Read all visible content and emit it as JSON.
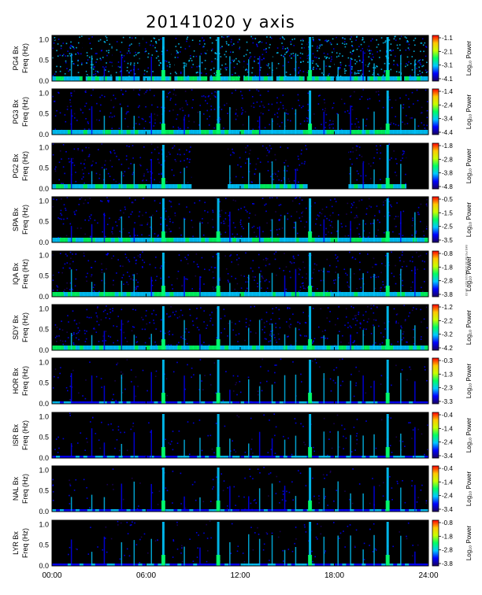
{
  "chart_data": {
    "type": "heatmap",
    "title": "20141020  y axis",
    "x_tick_labels": [
      "00:00",
      "06:00",
      "12:00",
      "18:00",
      "24:00"
    ],
    "x_ticks_hours": [
      0,
      6,
      12,
      18,
      24
    ],
    "xlim_hours": [
      0,
      24
    ],
    "y_tick_labels": [
      "0.0",
      "0.5",
      "1.0"
    ],
    "ylim": [
      0,
      1.1
    ],
    "ylabel": "Freq (Hz)",
    "colorbar_label": "Log₁₀ Power",
    "colormap": [
      "#1b0060",
      "#0000ff",
      "#00c8ff",
      "#00ff64",
      "#c8ff00",
      "#ffc800",
      "#ff0000"
    ],
    "panels": [
      {
        "name": "PG4 Bx",
        "colorbar_ticks": [
          "-1.1",
          "-2.1",
          "-3.1",
          "-4.1"
        ],
        "style": "noisy",
        "gaps_hours": [
          [
            1.95,
            2.15
          ],
          [
            3.85,
            4.05
          ],
          [
            5.6,
            5.8
          ],
          [
            7.6,
            7.8
          ],
          [
            9.9,
            10.05
          ],
          [
            12.0,
            12.2
          ],
          [
            14.1,
            14.3
          ],
          [
            16.1,
            16.25
          ],
          [
            18.0,
            18.1
          ],
          [
            20.0,
            20.1
          ],
          [
            22.3,
            22.45
          ]
        ]
      },
      {
        "name": "PG3 Bx",
        "colorbar_ticks": [
          "-1.4",
          "-2.4",
          "-3.4",
          "-4.4"
        ],
        "style": "mid",
        "gaps_hours": []
      },
      {
        "name": "PG2 Bx",
        "colorbar_ticks": [
          "-1.8",
          "-2.8",
          "-3.8",
          "-4.8"
        ],
        "style": "mid",
        "gaps_hours": [
          [
            8.9,
            11.2
          ],
          [
            16.3,
            18.9
          ],
          [
            22.6,
            24.0
          ]
        ]
      },
      {
        "name": "SPA Bx",
        "colorbar_ticks": [
          "-0.5",
          "-1.5",
          "-2.5",
          "-3.5"
        ],
        "style": "mid",
        "gaps_hours": []
      },
      {
        "name": "IQA Bx",
        "colorbar_ticks": [
          "-0.8",
          "-1.8",
          "-2.8",
          "-3.8"
        ],
        "style": "mid",
        "gaps_hours": []
      },
      {
        "name": "SDY Bx",
        "colorbar_ticks": [
          "-1.2",
          "-2.2",
          "-3.2",
          "-4.2"
        ],
        "style": "mid",
        "gaps_hours": []
      },
      {
        "name": "HOR Bx",
        "colorbar_ticks": [
          "-0.3",
          "-1.3",
          "-2.3",
          "-3.3"
        ],
        "style": "quiet",
        "gaps_hours": []
      },
      {
        "name": "ISR Bx",
        "colorbar_ticks": [
          "-0.4",
          "-1.4",
          "-2.4",
          "-3.4"
        ],
        "style": "quiet",
        "gaps_hours": []
      },
      {
        "name": "NAL Bx",
        "colorbar_ticks": [
          "-0.4",
          "-1.4",
          "-2.4",
          "-3.4"
        ],
        "style": "quiet",
        "gaps_hours": []
      },
      {
        "name": "LYR Bx",
        "colorbar_ticks": [
          "-0.8",
          "-1.8",
          "-2.8",
          "-3.8"
        ],
        "style": "quiet",
        "gaps_hours": []
      }
    ],
    "events_hours": {
      "strong": [
        7.1,
        10.6,
        16.45,
        21.4
      ],
      "weak": [
        1.2,
        2.5,
        3.3,
        4.4,
        5.2,
        6.3,
        8.4,
        9.4,
        11.3,
        12.5,
        13.2,
        14.0,
        14.8,
        15.5,
        17.3,
        18.2,
        19.0,
        19.8,
        20.5,
        22.2,
        23.1
      ]
    },
    "stamp": "IMS PG Bx 3D 20141020 GZT 19:33"
  }
}
